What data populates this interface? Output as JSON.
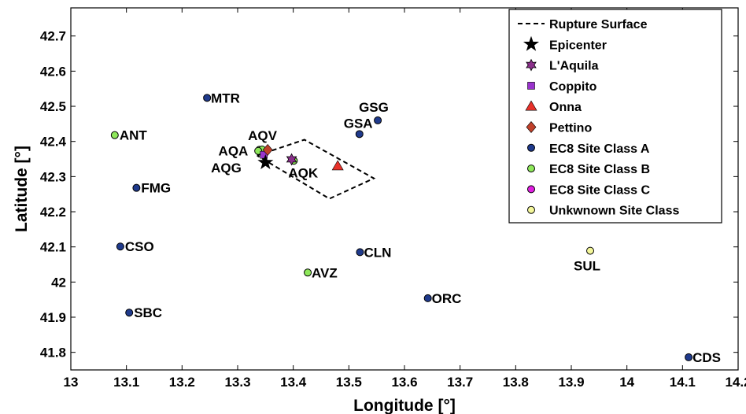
{
  "chart_data": {
    "type": "scatter",
    "xlabel": "Longitude [°]",
    "ylabel": "Latitude [°]",
    "xlim": [
      13.0,
      14.2
    ],
    "ylim": [
      41.75,
      42.78
    ],
    "xticks": [
      "13",
      "13.1",
      "13.2",
      "13.3",
      "13.4",
      "13.5",
      "13.6",
      "13.7",
      "13.8",
      "13.9",
      "14",
      "14.1",
      "14.2"
    ],
    "yticks": [
      "41.8",
      "41.9",
      "42",
      "42.1",
      "42.2",
      "42.3",
      "42.4",
      "42.5",
      "42.6",
      "42.7"
    ],
    "grid": false,
    "legend_position": "top-right",
    "legend": [
      {
        "label": "Rupture Surface",
        "symbol": "dashed-line",
        "color": "#000000"
      },
      {
        "label": "Epicenter",
        "symbol": "star",
        "color": "#000000"
      },
      {
        "label": "L'Aquila",
        "symbol": "hexagram",
        "color": "#8b2f8b"
      },
      {
        "label": "Coppito",
        "symbol": "square",
        "color": "#9933cc"
      },
      {
        "label": "Onna",
        "symbol": "triangle",
        "color": "#e8312a"
      },
      {
        "label": "Pettino",
        "symbol": "diamond",
        "color": "#c0402a"
      },
      {
        "label": "EC8 Site Class A",
        "symbol": "circle",
        "color": "#1f3a8c"
      },
      {
        "label": "EC8 Site Class  B",
        "symbol": "circle",
        "color": "#8ee85a"
      },
      {
        "label": "EC8 Site Class  C",
        "symbol": "circle",
        "color": "#e21fe2"
      },
      {
        "label": "Unkwnown Site Class",
        "symbol": "circle",
        "color": "#f4f79a"
      }
    ],
    "rupture_surface": [
      [
        13.335,
        42.36
      ],
      [
        13.42,
        42.405
      ],
      [
        13.545,
        42.295
      ],
      [
        13.465,
        42.237
      ],
      [
        13.335,
        42.36
      ]
    ],
    "sites": [
      {
        "name": "MTR",
        "x": 13.245,
        "y": 42.524,
        "class": "A"
      },
      {
        "name": "ANT",
        "x": 13.079,
        "y": 42.418,
        "class": "B"
      },
      {
        "name": "FMG",
        "x": 13.118,
        "y": 42.268,
        "class": "A"
      },
      {
        "name": "CSO",
        "x": 13.089,
        "y": 42.101,
        "class": "A"
      },
      {
        "name": "SBC",
        "x": 13.105,
        "y": 41.913,
        "class": "A"
      },
      {
        "name": "GSA",
        "x": 13.519,
        "y": 42.421,
        "class": "A"
      },
      {
        "name": "GSG",
        "x": 13.552,
        "y": 42.46,
        "class": "A"
      },
      {
        "name": "CLN",
        "x": 13.52,
        "y": 42.085,
        "class": "A"
      },
      {
        "name": "AVZ",
        "x": 13.426,
        "y": 42.027,
        "class": "B"
      },
      {
        "name": "ORC",
        "x": 13.642,
        "y": 41.954,
        "class": "A"
      },
      {
        "name": "CDS",
        "x": 14.111,
        "y": 41.786,
        "class": "A"
      },
      {
        "name": "SUL",
        "x": 13.934,
        "y": 42.089,
        "class": "Unknown"
      },
      {
        "name": "AQA",
        "x": 13.339,
        "y": 42.376,
        "class": "B"
      },
      {
        "name": "AQV",
        "x": 13.344,
        "y": 42.377,
        "class": "B"
      },
      {
        "name": "AQG",
        "x": 13.337,
        "y": 42.373,
        "class": "B"
      },
      {
        "name": "AQK",
        "x": 13.401,
        "y": 42.345,
        "class": "B"
      }
    ],
    "epicenter": {
      "x": 13.35,
      "y": 42.34
    },
    "towns": [
      {
        "name": "L'Aquila",
        "x": 13.397,
        "y": 42.349
      },
      {
        "name": "Coppito",
        "x": 13.347,
        "y": 42.362
      },
      {
        "name": "Onna",
        "x": 13.48,
        "y": 42.33
      },
      {
        "name": "Pettino",
        "x": 13.354,
        "y": 42.376
      }
    ],
    "class_colors": {
      "A": "#1f3a8c",
      "B": "#8ee85a",
      "C": "#e21fe2",
      "Unknown": "#f4f79a"
    }
  }
}
